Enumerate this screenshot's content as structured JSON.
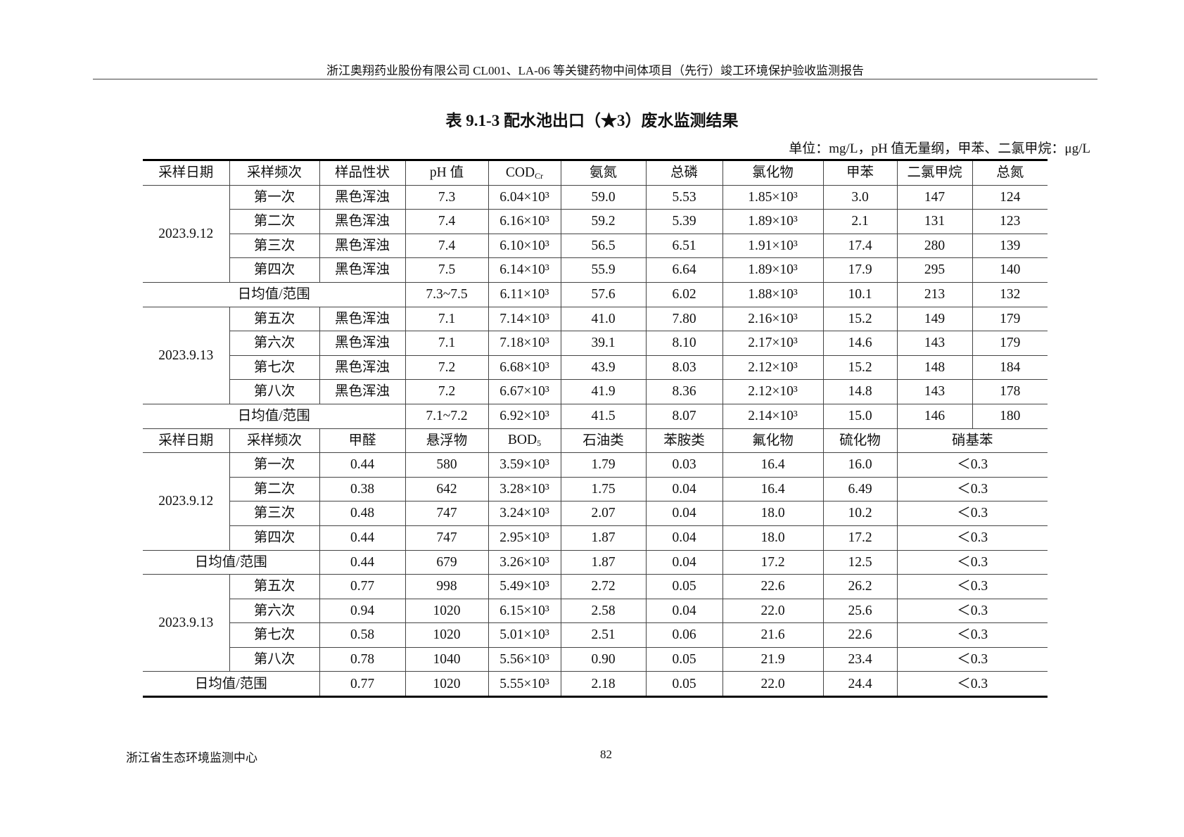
{
  "header": {
    "text": "浙江奥翔药业股份有限公司 CL001、LA-06 等关键药物中间体项目（先行）竣工环境保护验收监测报告"
  },
  "title": "表 9.1-3  配水池出口（★3）废水监测结果",
  "unit": "单位：mg/L，pH 值无量纲，甲苯、二氯甲烷：μg/L",
  "table1": {
    "headers": [
      {
        "label": "采样日期"
      },
      {
        "label": "采样频次"
      },
      {
        "label": "样品性状"
      },
      {
        "label": "pH 值"
      },
      {
        "label": "COD",
        "sub": "Cr"
      },
      {
        "label": "氨氮"
      },
      {
        "label": "总磷"
      },
      {
        "label": "氯化物"
      },
      {
        "label": "甲苯"
      },
      {
        "label": "二氯甲烷"
      },
      {
        "label": "总氮"
      }
    ],
    "groups": [
      {
        "date": "2023.9.12",
        "rows": [
          [
            "第一次",
            "黑色浑浊",
            "7.3",
            "6.04×10³",
            "59.0",
            "5.53",
            "1.85×10³",
            "3.0",
            "147",
            "124"
          ],
          [
            "第二次",
            "黑色浑浊",
            "7.4",
            "6.16×10³",
            "59.2",
            "5.39",
            "1.89×10³",
            "2.1",
            "131",
            "123"
          ],
          [
            "第三次",
            "黑色浑浊",
            "7.4",
            "6.10×10³",
            "56.5",
            "6.51",
            "1.91×10³",
            "17.4",
            "280",
            "139"
          ],
          [
            "第四次",
            "黑色浑浊",
            "7.5",
            "6.14×10³",
            "55.9",
            "6.64",
            "1.89×10³",
            "17.9",
            "295",
            "140"
          ]
        ],
        "avg_label": "日均值/范围",
        "avg": [
          "7.3~7.5",
          "6.11×10³",
          "57.6",
          "6.02",
          "1.88×10³",
          "10.1",
          "213",
          "132"
        ]
      },
      {
        "date": "2023.9.13",
        "rows": [
          [
            "第五次",
            "黑色浑浊",
            "7.1",
            "7.14×10³",
            "41.0",
            "7.80",
            "2.16×10³",
            "15.2",
            "149",
            "179"
          ],
          [
            "第六次",
            "黑色浑浊",
            "7.1",
            "7.18×10³",
            "39.1",
            "8.10",
            "2.17×10³",
            "14.6",
            "143",
            "179"
          ],
          [
            "第七次",
            "黑色浑浊",
            "7.2",
            "6.68×10³",
            "43.9",
            "8.03",
            "2.12×10³",
            "15.2",
            "148",
            "184"
          ],
          [
            "第八次",
            "黑色浑浊",
            "7.2",
            "6.67×10³",
            "41.9",
            "8.36",
            "2.12×10³",
            "14.8",
            "143",
            "178"
          ]
        ],
        "avg_label": "日均值/范围",
        "avg": [
          "7.1~7.2",
          "6.92×10³",
          "41.5",
          "8.07",
          "2.14×10³",
          "15.0",
          "146",
          "180"
        ]
      }
    ]
  },
  "table2": {
    "headers": [
      {
        "label": "采样日期"
      },
      {
        "label": "采样频次"
      },
      {
        "label": "甲醛"
      },
      {
        "label": "悬浮物"
      },
      {
        "label": "BOD",
        "sub": "5"
      },
      {
        "label": "石油类"
      },
      {
        "label": "苯胺类"
      },
      {
        "label": "氟化物"
      },
      {
        "label": "硫化物"
      },
      {
        "label": "硝基苯"
      }
    ],
    "groups": [
      {
        "date": "2023.9.12",
        "rows": [
          [
            "第一次",
            "0.44",
            "580",
            "3.59×10³",
            "1.79",
            "0.03",
            "16.4",
            "16.0",
            "＜0.3"
          ],
          [
            "第二次",
            "0.38",
            "642",
            "3.28×10³",
            "1.75",
            "0.04",
            "16.4",
            "6.49",
            "＜0.3"
          ],
          [
            "第三次",
            "0.48",
            "747",
            "3.24×10³",
            "2.07",
            "0.04",
            "18.0",
            "10.2",
            "＜0.3"
          ],
          [
            "第四次",
            "0.44",
            "747",
            "2.95×10³",
            "1.87",
            "0.04",
            "18.0",
            "17.2",
            "＜0.3"
          ]
        ],
        "avg_label": "日均值/范围",
        "avg": [
          "0.44",
          "679",
          "3.26×10³",
          "1.87",
          "0.04",
          "17.2",
          "12.5",
          "＜0.3"
        ]
      },
      {
        "date": "2023.9.13",
        "rows": [
          [
            "第五次",
            "0.77",
            "998",
            "5.49×10³",
            "2.72",
            "0.05",
            "22.6",
            "26.2",
            "＜0.3"
          ],
          [
            "第六次",
            "0.94",
            "1020",
            "6.15×10³",
            "2.58",
            "0.04",
            "22.0",
            "25.6",
            "＜0.3"
          ],
          [
            "第七次",
            "0.58",
            "1020",
            "5.01×10³",
            "2.51",
            "0.06",
            "21.6",
            "22.6",
            "＜0.3"
          ],
          [
            "第八次",
            "0.78",
            "1040",
            "5.56×10³",
            "0.90",
            "0.05",
            "21.9",
            "23.4",
            "＜0.3"
          ]
        ],
        "avg_label": "日均值/范围",
        "avg": [
          "0.77",
          "1020",
          "5.55×10³",
          "2.18",
          "0.05",
          "22.0",
          "24.4",
          "＜0.3"
        ]
      }
    ]
  },
  "footer": {
    "org": "浙江省生态环境监测中心",
    "page": "82"
  }
}
